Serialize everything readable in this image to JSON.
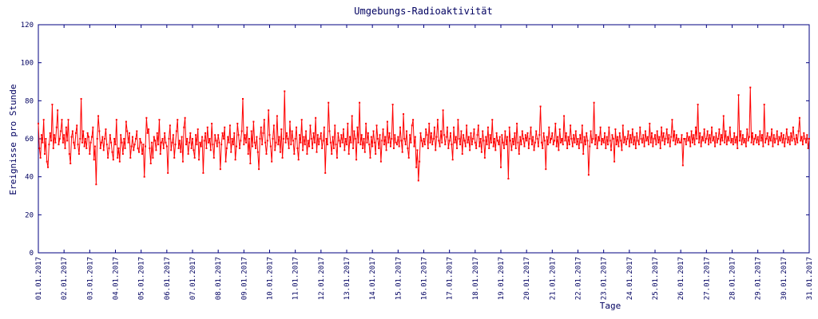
{
  "chart_data": {
    "type": "line",
    "title": "Umgebungs-Radioaktivität",
    "xlabel": "Tage",
    "ylabel": "Ereignisse pro Stunde",
    "color": "#ff0000",
    "ylim": [
      0,
      120
    ],
    "yticks": [
      0,
      20,
      40,
      60,
      80,
      100,
      120
    ],
    "xlim": [
      0,
      720
    ],
    "xticks": [
      {
        "value": 0,
        "label": "01.01.2017"
      },
      {
        "value": 24,
        "label": "02.01.2017"
      },
      {
        "value": 48,
        "label": "03.01.2017"
      },
      {
        "value": 72,
        "label": "04.01.2017"
      },
      {
        "value": 96,
        "label": "05.01.2017"
      },
      {
        "value": 120,
        "label": "06.01.2017"
      },
      {
        "value": 144,
        "label": "07.01.2017"
      },
      {
        "value": 168,
        "label": "08.01.2017"
      },
      {
        "value": 192,
        "label": "09.01.2017"
      },
      {
        "value": 216,
        "label": "10.01.2017"
      },
      {
        "value": 240,
        "label": "11.01.2017"
      },
      {
        "value": 264,
        "label": "12.01.2017"
      },
      {
        "value": 288,
        "label": "13.01.2017"
      },
      {
        "value": 312,
        "label": "14.01.2017"
      },
      {
        "value": 336,
        "label": "15.01.2017"
      },
      {
        "value": 360,
        "label": "16.01.2017"
      },
      {
        "value": 384,
        "label": "17.01.2017"
      },
      {
        "value": 408,
        "label": "18.01.2017"
      },
      {
        "value": 432,
        "label": "19.01.2017"
      },
      {
        "value": 456,
        "label": "20.01.2017"
      },
      {
        "value": 480,
        "label": "21.01.2017"
      },
      {
        "value": 504,
        "label": "22.01.2017"
      },
      {
        "value": 528,
        "label": "23.01.2017"
      },
      {
        "value": 552,
        "label": "24.01.2017"
      },
      {
        "value": 576,
        "label": "25.01.2017"
      },
      {
        "value": 600,
        "label": "26.01.2017"
      },
      {
        "value": 624,
        "label": "27.01.2017"
      },
      {
        "value": 648,
        "label": "28.01.2017"
      },
      {
        "value": 672,
        "label": "29.01.2017"
      },
      {
        "value": 696,
        "label": "30.01.2017"
      },
      {
        "value": 720,
        "label": "31.01.2017"
      }
    ],
    "values": [
      68,
      55,
      50,
      62,
      58,
      70,
      52,
      60,
      48,
      45,
      57,
      63,
      59,
      78,
      55,
      62,
      58,
      66,
      75,
      57,
      60,
      64,
      70,
      58,
      62,
      55,
      66,
      59,
      70,
      52,
      47,
      61,
      64,
      58,
      55,
      63,
      67,
      57,
      52,
      60,
      81,
      58,
      64,
      56,
      60,
      55,
      63,
      61,
      52,
      58,
      61,
      66,
      49,
      56,
      36,
      60,
      72,
      64,
      55,
      58,
      61,
      54,
      60,
      65,
      57,
      50,
      55,
      62,
      58,
      53,
      49,
      60,
      57,
      70,
      50,
      55,
      48,
      62,
      58,
      52,
      60,
      55,
      69,
      64,
      58,
      63,
      50,
      56,
      61,
      54,
      57,
      60,
      64,
      55,
      53,
      60,
      58,
      52,
      57,
      40,
      56,
      71,
      63,
      65,
      55,
      47,
      58,
      50,
      61,
      59,
      54,
      63,
      57,
      70,
      52,
      58,
      60,
      55,
      63,
      58,
      56,
      42,
      60,
      67,
      54,
      58,
      62,
      50,
      57,
      64,
      70,
      55,
      59,
      53,
      61,
      48,
      66,
      71,
      57,
      60,
      52,
      58,
      63,
      55,
      60,
      54,
      50,
      62,
      57,
      65,
      49,
      58,
      56,
      61,
      42,
      59,
      63,
      55,
      66,
      58,
      60,
      54,
      68,
      57,
      50,
      62,
      59,
      56,
      62,
      58,
      44,
      57,
      63,
      60,
      66,
      48,
      55,
      61,
      58,
      67,
      53,
      60,
      57,
      63,
      49,
      56,
      68,
      62,
      55,
      59,
      64,
      81,
      57,
      62,
      58,
      66,
      52,
      60,
      47,
      64,
      56,
      69,
      58,
      55,
      61,
      53,
      44,
      60,
      66,
      57,
      63,
      70,
      58,
      52,
      59,
      75,
      62,
      56,
      48,
      60,
      67,
      54,
      58,
      72,
      57,
      61,
      53,
      65,
      50,
      60,
      85,
      58,
      63,
      60,
      55,
      69,
      57,
      64,
      59,
      52,
      60,
      66,
      55,
      49,
      62,
      58,
      70,
      54,
      61,
      57,
      64,
      52,
      59,
      56,
      67,
      60,
      55,
      63,
      58,
      71,
      53,
      62,
      57,
      60,
      63,
      55,
      59,
      66,
      42,
      60,
      57,
      79,
      64,
      58,
      52,
      61,
      55,
      67,
      57,
      50,
      63,
      59,
      56,
      62,
      58,
      65,
      54,
      60,
      57,
      68,
      52,
      61,
      58,
      72,
      55,
      64,
      60,
      49,
      66,
      58,
      79,
      57,
      62,
      55,
      60,
      53,
      68,
      58,
      63,
      57,
      50,
      61,
      56,
      64,
      58,
      52,
      67,
      60,
      55,
      62,
      48,
      59,
      65,
      57,
      61,
      54,
      69,
      58,
      63,
      56,
      60,
      78,
      55,
      62,
      58,
      57,
      61,
      56,
      66,
      59,
      53,
      73,
      60,
      57,
      64,
      55,
      50,
      62,
      58,
      67,
      70,
      56,
      61,
      45,
      54,
      38,
      48,
      63,
      59,
      56,
      60,
      57,
      65,
      62,
      55,
      68,
      58,
      63,
      57,
      60,
      66,
      54,
      61,
      70,
      59,
      56,
      64,
      58,
      75,
      62,
      57,
      61,
      66,
      55,
      59,
      63,
      57,
      49,
      66,
      58,
      61,
      55,
      70,
      60,
      57,
      64,
      52,
      62,
      59,
      56,
      67,
      58,
      61,
      54,
      63,
      57,
      60,
      65,
      58,
      55,
      62,
      67,
      56,
      60,
      53,
      64,
      59,
      50,
      61,
      57,
      66,
      55,
      62,
      58,
      70,
      56,
      60,
      54,
      63,
      59,
      57,
      61,
      45,
      62,
      58,
      55,
      64,
      57,
      61,
      39,
      66,
      59,
      54,
      60,
      57,
      63,
      55,
      68,
      58,
      52,
      61,
      57,
      64,
      60,
      56,
      62,
      59,
      63,
      55,
      60,
      66,
      57,
      61,
      54,
      58,
      64,
      60,
      56,
      62,
      77,
      58,
      55,
      63,
      59,
      44,
      61,
      57,
      66,
      58,
      60,
      63,
      57,
      59,
      68,
      56,
      61,
      54,
      65,
      58,
      60,
      57,
      72,
      59,
      63,
      55,
      61,
      57,
      67,
      60,
      56,
      62,
      58,
      64,
      57,
      60,
      55,
      62,
      58,
      67,
      52,
      61,
      57,
      63,
      59,
      41,
      56,
      64,
      58,
      60,
      79,
      57,
      62,
      55,
      61,
      59,
      66,
      57,
      60,
      58,
      63,
      55,
      61,
      57,
      66,
      59,
      54,
      62,
      60,
      48,
      65,
      57,
      61,
      56,
      63,
      59,
      54,
      67,
      58,
      61,
      57,
      60,
      64,
      56,
      62,
      58,
      65,
      57,
      61,
      55,
      63,
      59,
      57,
      66,
      60,
      58,
      62,
      56,
      64,
      59,
      61,
      57,
      68,
      58,
      63,
      56,
      60,
      62,
      57,
      64,
      58,
      61,
      55,
      66,
      59,
      63,
      57,
      60,
      65,
      58,
      62,
      56,
      61,
      70,
      59,
      64,
      57,
      62,
      58,
      60,
      58,
      58,
      62,
      46,
      60,
      60,
      57,
      63,
      59,
      61,
      56,
      64,
      58,
      62,
      57,
      66,
      60,
      78,
      58,
      63,
      56,
      61,
      59,
      65,
      58,
      60,
      64,
      57,
      62,
      58,
      66,
      59,
      61,
      56,
      63,
      58,
      60,
      65,
      57,
      62,
      59,
      72,
      58,
      64,
      57,
      61,
      59,
      66,
      58,
      60,
      57,
      63,
      58,
      61,
      55,
      83,
      59,
      64,
      57,
      62,
      58,
      60,
      56,
      65,
      59,
      61,
      87,
      58,
      63,
      57,
      60,
      62,
      58,
      61,
      57,
      64,
      59,
      62,
      56,
      78,
      58,
      60,
      63,
      57,
      61,
      59,
      65,
      56,
      62,
      58,
      60,
      64,
      57,
      61,
      59,
      63,
      58,
      62,
      56,
      60,
      65,
      58,
      61,
      57,
      63,
      59,
      66,
      60,
      57,
      62,
      58,
      64,
      71,
      59,
      61,
      57,
      63,
      60,
      58,
      62,
      55,
      60
    ]
  }
}
